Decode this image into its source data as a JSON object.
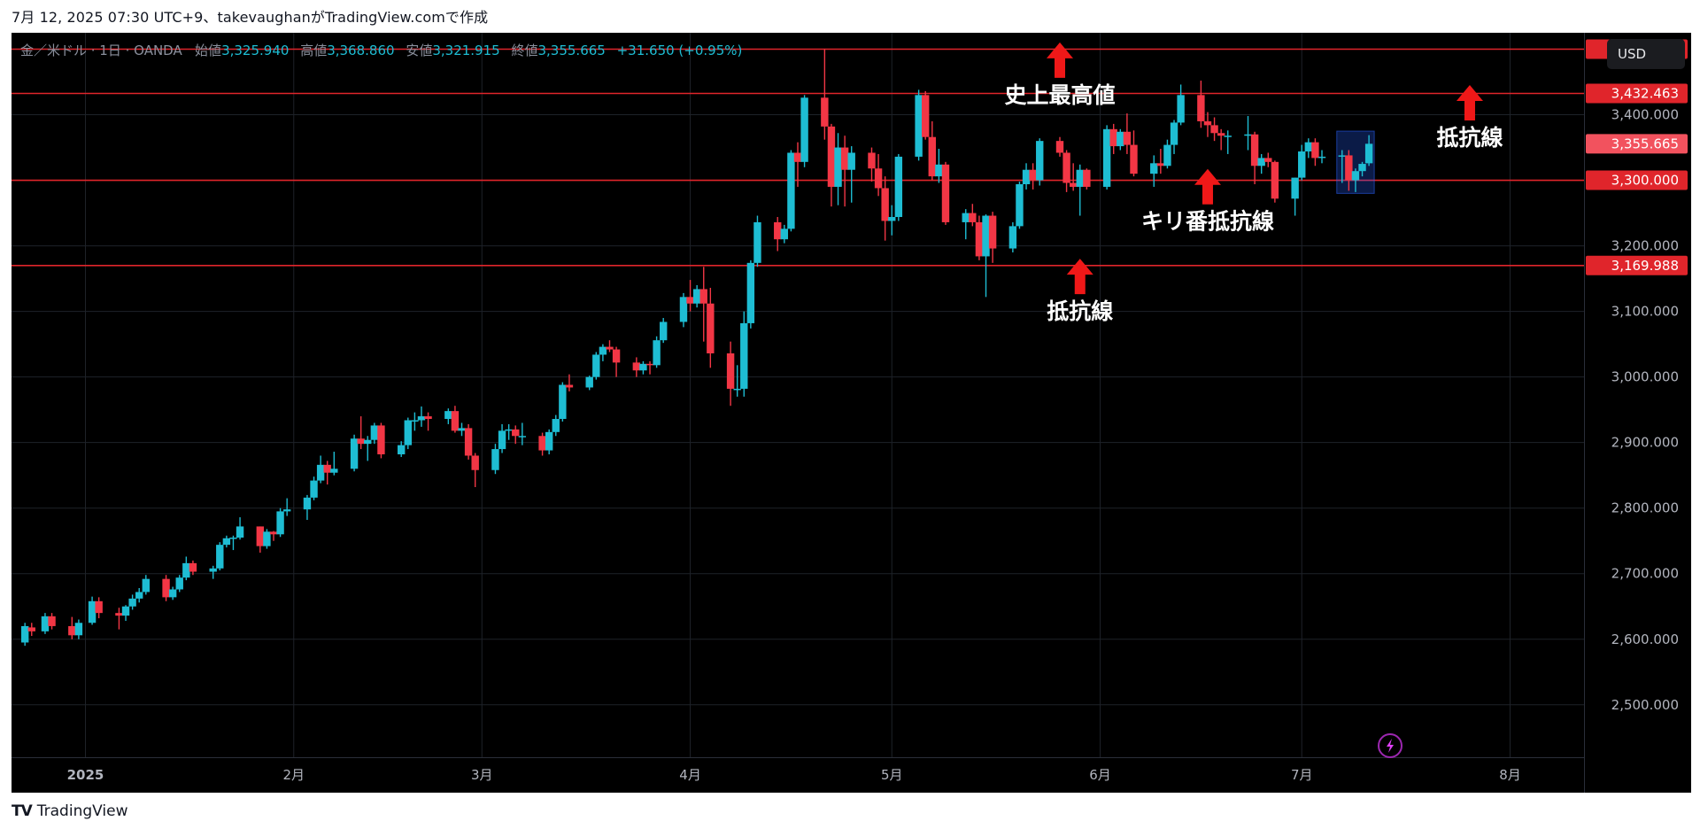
{
  "caption": "7月 12, 2025 07:30 UTC+9、takevaughanがTradingView.comで作成",
  "footer": {
    "logo": "TV",
    "brand": "TradingView"
  },
  "currency": "USD",
  "legend": {
    "symbol": "金／米ドル · 1日 · OANDA",
    "open_label": "始値",
    "open": "3,325.940",
    "high_label": "高値",
    "high": "3,368.860",
    "low_label": "安値",
    "low": "3,321.915",
    "close_label": "終値",
    "close": "3,355.665",
    "change": "+31.650 (+0.95%)"
  },
  "colors": {
    "up": "#1ebdd3",
    "down": "#f23645",
    "level_line": "#e0252b",
    "annotation_arrow": "#f01818",
    "price_tag_current": "#f2525e",
    "background": "#000000",
    "grid": "#1e2229"
  },
  "chart_data": {
    "type": "candlestick",
    "symbol": "XAU/USD",
    "interval": "1D",
    "yrange": [
      2420,
      3525
    ],
    "y_ticks": [
      2500,
      2600,
      2700,
      2800,
      2900,
      3000,
      3100,
      3200,
      3300,
      3400
    ],
    "y_tick_labels": [
      "2,500.000",
      "2,600.000",
      "2,700.000",
      "2,800.000",
      "2,900.000",
      "3,000.000",
      "3,100.000",
      "3,200.000",
      "3,300.000",
      "3,400.000"
    ],
    "x_axis_range": [
      "2024-12-21",
      "2025-08-12"
    ],
    "x_ticks": [
      {
        "date": "2025-01-01",
        "label": "2025",
        "bold": true
      },
      {
        "date": "2025-02-01",
        "label": "2月"
      },
      {
        "date": "2025-03-01",
        "label": "3月"
      },
      {
        "date": "2025-04-01",
        "label": "4月"
      },
      {
        "date": "2025-05-01",
        "label": "5月"
      },
      {
        "date": "2025-06-01",
        "label": "6月"
      },
      {
        "date": "2025-07-01",
        "label": "7月"
      },
      {
        "date": "2025-08-01",
        "label": "8月"
      }
    ],
    "horizontal_levels": [
      {
        "price": 3500.0,
        "label": "3,500.000"
      },
      {
        "price": 3432.463,
        "label": "3,432.463"
      },
      {
        "price": 3300.0,
        "label": "3,300.000"
      },
      {
        "price": 3169.988,
        "label": "3,169.988"
      }
    ],
    "current_price": {
      "price": 3355.665,
      "label": "3,355.665"
    },
    "annotations": [
      {
        "text": "史上最高値",
        "date": "2025-05-26",
        "price": 3405,
        "arrow": "up"
      },
      {
        "text": "キリ番抵抗線",
        "date": "2025-06-17",
        "price": 3212,
        "arrow": "up"
      },
      {
        "text": "抵抗線",
        "date": "2025-05-29",
        "price": 3075,
        "arrow": "up"
      },
      {
        "text": "抵抗線",
        "date": "2025-07-26",
        "price": 3340,
        "arrow": "up"
      }
    ],
    "highlight_box": {
      "from": "2025-07-07",
      "to": "2025-07-11",
      "low": 3280,
      "high": 3375
    },
    "candles": [
      {
        "d": "2024-12-23",
        "o": 2595,
        "h": 2625,
        "l": 2590,
        "c": 2620
      },
      {
        "d": "2024-12-24",
        "o": 2618,
        "h": 2625,
        "l": 2605,
        "c": 2612
      },
      {
        "d": "2024-12-26",
        "o": 2612,
        "h": 2640,
        "l": 2608,
        "c": 2635
      },
      {
        "d": "2024-12-27",
        "o": 2635,
        "h": 2640,
        "l": 2615,
        "c": 2620
      },
      {
        "d": "2024-12-30",
        "o": 2620,
        "h": 2634,
        "l": 2600,
        "c": 2606
      },
      {
        "d": "2024-12-31",
        "o": 2606,
        "h": 2630,
        "l": 2600,
        "c": 2625
      },
      {
        "d": "2025-01-02",
        "o": 2625,
        "h": 2665,
        "l": 2622,
        "c": 2658
      },
      {
        "d": "2025-01-03",
        "o": 2658,
        "h": 2664,
        "l": 2632,
        "c": 2640
      },
      {
        "d": "2025-01-06",
        "o": 2640,
        "h": 2648,
        "l": 2615,
        "c": 2636
      },
      {
        "d": "2025-01-07",
        "o": 2636,
        "h": 2652,
        "l": 2628,
        "c": 2650
      },
      {
        "d": "2025-01-08",
        "o": 2650,
        "h": 2668,
        "l": 2645,
        "c": 2662
      },
      {
        "d": "2025-01-09",
        "o": 2662,
        "h": 2678,
        "l": 2656,
        "c": 2672
      },
      {
        "d": "2025-01-10",
        "o": 2672,
        "h": 2698,
        "l": 2668,
        "c": 2692
      },
      {
        "d": "2025-01-13",
        "o": 2692,
        "h": 2698,
        "l": 2658,
        "c": 2664
      },
      {
        "d": "2025-01-14",
        "o": 2664,
        "h": 2680,
        "l": 2660,
        "c": 2676
      },
      {
        "d": "2025-01-15",
        "o": 2676,
        "h": 2698,
        "l": 2672,
        "c": 2694
      },
      {
        "d": "2025-01-16",
        "o": 2694,
        "h": 2726,
        "l": 2690,
        "c": 2716
      },
      {
        "d": "2025-01-17",
        "o": 2716,
        "h": 2720,
        "l": 2698,
        "c": 2703
      },
      {
        "d": "2025-01-20",
        "o": 2703,
        "h": 2712,
        "l": 2692,
        "c": 2708
      },
      {
        "d": "2025-01-21",
        "o": 2708,
        "h": 2748,
        "l": 2705,
        "c": 2744
      },
      {
        "d": "2025-01-22",
        "o": 2744,
        "h": 2758,
        "l": 2740,
        "c": 2754
      },
      {
        "d": "2025-01-23",
        "o": 2754,
        "h": 2758,
        "l": 2736,
        "c": 2755
      },
      {
        "d": "2025-01-24",
        "o": 2755,
        "h": 2786,
        "l": 2752,
        "c": 2772
      },
      {
        "d": "2025-01-27",
        "o": 2772,
        "h": 2772,
        "l": 2732,
        "c": 2742
      },
      {
        "d": "2025-01-28",
        "o": 2742,
        "h": 2768,
        "l": 2738,
        "c": 2764
      },
      {
        "d": "2025-01-29",
        "o": 2764,
        "h": 2765,
        "l": 2750,
        "c": 2760
      },
      {
        "d": "2025-01-30",
        "o": 2760,
        "h": 2800,
        "l": 2756,
        "c": 2795
      },
      {
        "d": "2025-01-31",
        "o": 2795,
        "h": 2815,
        "l": 2788,
        "c": 2798
      },
      {
        "d": "2025-02-03",
        "o": 2798,
        "h": 2820,
        "l": 2782,
        "c": 2816
      },
      {
        "d": "2025-02-04",
        "o": 2816,
        "h": 2848,
        "l": 2812,
        "c": 2842
      },
      {
        "d": "2025-02-05",
        "o": 2842,
        "h": 2880,
        "l": 2838,
        "c": 2866
      },
      {
        "d": "2025-02-06",
        "o": 2866,
        "h": 2872,
        "l": 2836,
        "c": 2854
      },
      {
        "d": "2025-02-07",
        "o": 2854,
        "h": 2886,
        "l": 2850,
        "c": 2860
      },
      {
        "d": "2025-02-10",
        "o": 2860,
        "h": 2912,
        "l": 2856,
        "c": 2906
      },
      {
        "d": "2025-02-11",
        "o": 2906,
        "h": 2940,
        "l": 2890,
        "c": 2898
      },
      {
        "d": "2025-02-12",
        "o": 2898,
        "h": 2910,
        "l": 2872,
        "c": 2904
      },
      {
        "d": "2025-02-13",
        "o": 2904,
        "h": 2930,
        "l": 2898,
        "c": 2926
      },
      {
        "d": "2025-02-14",
        "o": 2926,
        "h": 2930,
        "l": 2876,
        "c": 2882
      },
      {
        "d": "2025-02-17",
        "o": 2882,
        "h": 2902,
        "l": 2878,
        "c": 2896
      },
      {
        "d": "2025-02-18",
        "o": 2896,
        "h": 2938,
        "l": 2890,
        "c": 2934
      },
      {
        "d": "2025-02-19",
        "o": 2934,
        "h": 2946,
        "l": 2918,
        "c": 2934
      },
      {
        "d": "2025-02-20",
        "o": 2934,
        "h": 2955,
        "l": 2924,
        "c": 2940
      },
      {
        "d": "2025-02-21",
        "o": 2940,
        "h": 2946,
        "l": 2918,
        "c": 2936
      },
      {
        "d": "2025-02-24",
        "o": 2936,
        "h": 2952,
        "l": 2928,
        "c": 2948
      },
      {
        "d": "2025-02-25",
        "o": 2948,
        "h": 2956,
        "l": 2915,
        "c": 2918
      },
      {
        "d": "2025-02-26",
        "o": 2918,
        "h": 2930,
        "l": 2910,
        "c": 2922
      },
      {
        "d": "2025-02-27",
        "o": 2922,
        "h": 2928,
        "l": 2874,
        "c": 2880
      },
      {
        "d": "2025-02-28",
        "o": 2880,
        "h": 2884,
        "l": 2832,
        "c": 2858
      },
      {
        "d": "2025-03-03",
        "o": 2858,
        "h": 2898,
        "l": 2852,
        "c": 2890
      },
      {
        "d": "2025-03-04",
        "o": 2890,
        "h": 2928,
        "l": 2884,
        "c": 2918
      },
      {
        "d": "2025-03-05",
        "o": 2918,
        "h": 2928,
        "l": 2904,
        "c": 2920
      },
      {
        "d": "2025-03-06",
        "o": 2920,
        "h": 2926,
        "l": 2898,
        "c": 2910
      },
      {
        "d": "2025-03-07",
        "o": 2910,
        "h": 2930,
        "l": 2896,
        "c": 2910
      },
      {
        "d": "2025-03-10",
        "o": 2910,
        "h": 2915,
        "l": 2880,
        "c": 2888
      },
      {
        "d": "2025-03-11",
        "o": 2888,
        "h": 2920,
        "l": 2882,
        "c": 2916
      },
      {
        "d": "2025-03-12",
        "o": 2916,
        "h": 2942,
        "l": 2910,
        "c": 2936
      },
      {
        "d": "2025-03-13",
        "o": 2936,
        "h": 2992,
        "l": 2932,
        "c": 2988
      },
      {
        "d": "2025-03-14",
        "o": 2988,
        "h": 3004,
        "l": 2978,
        "c": 2984
      },
      {
        "d": "2025-03-17",
        "o": 2984,
        "h": 3002,
        "l": 2980,
        "c": 3000
      },
      {
        "d": "2025-03-18",
        "o": 3000,
        "h": 3038,
        "l": 2996,
        "c": 3034
      },
      {
        "d": "2025-03-19",
        "o": 3034,
        "h": 3050,
        "l": 3024,
        "c": 3046
      },
      {
        "d": "2025-03-20",
        "o": 3046,
        "h": 3056,
        "l": 3038,
        "c": 3042
      },
      {
        "d": "2025-03-21",
        "o": 3042,
        "h": 3046,
        "l": 3000,
        "c": 3022
      },
      {
        "d": "2025-03-24",
        "o": 3022,
        "h": 3030,
        "l": 3000,
        "c": 3010
      },
      {
        "d": "2025-03-25",
        "o": 3010,
        "h": 3024,
        "l": 3004,
        "c": 3020
      },
      {
        "d": "2025-03-26",
        "o": 3020,
        "h": 3024,
        "l": 3004,
        "c": 3018
      },
      {
        "d": "2025-03-27",
        "o": 3018,
        "h": 3062,
        "l": 3014,
        "c": 3056
      },
      {
        "d": "2025-03-28",
        "o": 3056,
        "h": 3090,
        "l": 3052,
        "c": 3084
      },
      {
        "d": "2025-03-31",
        "o": 3084,
        "h": 3128,
        "l": 3076,
        "c": 3122
      },
      {
        "d": "2025-04-01",
        "o": 3122,
        "h": 3148,
        "l": 3100,
        "c": 3112
      },
      {
        "d": "2025-04-02",
        "o": 3112,
        "h": 3140,
        "l": 3106,
        "c": 3134
      },
      {
        "d": "2025-04-03",
        "o": 3134,
        "h": 3168,
        "l": 3054,
        "c": 3112
      },
      {
        "d": "2025-04-04",
        "o": 3112,
        "h": 3136,
        "l": 3014,
        "c": 3036
      },
      {
        "d": "2025-04-07",
        "o": 3036,
        "h": 3054,
        "l": 2956,
        "c": 2982
      },
      {
        "d": "2025-04-08",
        "o": 2982,
        "h": 3018,
        "l": 2970,
        "c": 2982
      },
      {
        "d": "2025-04-09",
        "o": 2982,
        "h": 3100,
        "l": 2970,
        "c": 3082
      },
      {
        "d": "2025-04-10",
        "o": 3082,
        "h": 3178,
        "l": 3074,
        "c": 3174
      },
      {
        "d": "2025-04-11",
        "o": 3174,
        "h": 3246,
        "l": 3168,
        "c": 3236
      },
      {
        "d": "2025-04-14",
        "o": 3236,
        "h": 3244,
        "l": 3192,
        "c": 3210
      },
      {
        "d": "2025-04-15",
        "o": 3210,
        "h": 3232,
        "l": 3204,
        "c": 3226
      },
      {
        "d": "2025-04-16",
        "o": 3226,
        "h": 3346,
        "l": 3222,
        "c": 3342
      },
      {
        "d": "2025-04-17",
        "o": 3342,
        "h": 3358,
        "l": 3290,
        "c": 3328
      },
      {
        "d": "2025-04-18",
        "o": 3328,
        "h": 3430,
        "l": 3320,
        "c": 3426
      },
      {
        "d": "2025-04-21",
        "o": 3426,
        "h": 3500,
        "l": 3362,
        "c": 3382
      },
      {
        "d": "2025-04-22",
        "o": 3382,
        "h": 3386,
        "l": 3260,
        "c": 3290
      },
      {
        "d": "2025-04-23",
        "o": 3290,
        "h": 3372,
        "l": 3262,
        "c": 3350
      },
      {
        "d": "2025-04-24",
        "o": 3350,
        "h": 3368,
        "l": 3260,
        "c": 3316
      },
      {
        "d": "2025-04-25",
        "o": 3316,
        "h": 3352,
        "l": 3266,
        "c": 3342
      },
      {
        "d": "2025-04-28",
        "o": 3342,
        "h": 3350,
        "l": 3298,
        "c": 3318
      },
      {
        "d": "2025-04-29",
        "o": 3318,
        "h": 3340,
        "l": 3276,
        "c": 3288
      },
      {
        "d": "2025-04-30",
        "o": 3288,
        "h": 3306,
        "l": 3208,
        "c": 3238
      },
      {
        "d": "2025-05-01",
        "o": 3238,
        "h": 3262,
        "l": 3216,
        "c": 3244
      },
      {
        "d": "2025-05-02",
        "o": 3244,
        "h": 3340,
        "l": 3238,
        "c": 3336
      },
      {
        "d": "2025-05-05",
        "o": 3336,
        "h": 3438,
        "l": 3330,
        "c": 3430
      },
      {
        "d": "2025-05-06",
        "o": 3430,
        "h": 3436,
        "l": 3362,
        "c": 3366
      },
      {
        "d": "2025-05-07",
        "o": 3366,
        "h": 3390,
        "l": 3300,
        "c": 3306
      },
      {
        "d": "2025-05-08",
        "o": 3306,
        "h": 3348,
        "l": 3296,
        "c": 3324
      },
      {
        "d": "2025-05-09",
        "o": 3324,
        "h": 3328,
        "l": 3232,
        "c": 3236
      },
      {
        "d": "2025-05-12",
        "o": 3236,
        "h": 3256,
        "l": 3210,
        "c": 3250
      },
      {
        "d": "2025-05-13",
        "o": 3250,
        "h": 3264,
        "l": 3230,
        "c": 3236
      },
      {
        "d": "2025-05-14",
        "o": 3236,
        "h": 3246,
        "l": 3178,
        "c": 3184
      },
      {
        "d": "2025-05-15",
        "o": 3184,
        "h": 3248,
        "l": 3122,
        "c": 3246
      },
      {
        "d": "2025-05-16",
        "o": 3246,
        "h": 3252,
        "l": 3174,
        "c": 3196
      },
      {
        "d": "2025-05-19",
        "o": 3196,
        "h": 3236,
        "l": 3190,
        "c": 3230
      },
      {
        "d": "2025-05-20",
        "o": 3230,
        "h": 3298,
        "l": 3226,
        "c": 3294
      },
      {
        "d": "2025-05-21",
        "o": 3294,
        "h": 3326,
        "l": 3286,
        "c": 3316
      },
      {
        "d": "2025-05-22",
        "o": 3316,
        "h": 3326,
        "l": 3286,
        "c": 3300
      },
      {
        "d": "2025-05-23",
        "o": 3300,
        "h": 3364,
        "l": 3292,
        "c": 3360
      },
      {
        "d": "2025-05-26",
        "o": 3360,
        "h": 3366,
        "l": 3336,
        "c": 3342
      },
      {
        "d": "2025-05-27",
        "o": 3342,
        "h": 3346,
        "l": 3282,
        "c": 3296
      },
      {
        "d": "2025-05-28",
        "o": 3296,
        "h": 3326,
        "l": 3284,
        "c": 3290
      },
      {
        "d": "2025-05-29",
        "o": 3290,
        "h": 3324,
        "l": 3246,
        "c": 3316
      },
      {
        "d": "2025-05-30",
        "o": 3316,
        "h": 3318,
        "l": 3286,
        "c": 3290
      },
      {
        "d": "2025-06-02",
        "o": 3290,
        "h": 3384,
        "l": 3286,
        "c": 3378
      },
      {
        "d": "2025-06-03",
        "o": 3378,
        "h": 3386,
        "l": 3340,
        "c": 3352
      },
      {
        "d": "2025-06-04",
        "o": 3352,
        "h": 3378,
        "l": 3346,
        "c": 3374
      },
      {
        "d": "2025-06-05",
        "o": 3374,
        "h": 3402,
        "l": 3340,
        "c": 3354
      },
      {
        "d": "2025-06-06",
        "o": 3354,
        "h": 3376,
        "l": 3306,
        "c": 3310
      },
      {
        "d": "2025-06-09",
        "o": 3310,
        "h": 3338,
        "l": 3290,
        "c": 3326
      },
      {
        "d": "2025-06-10",
        "o": 3326,
        "h": 3348,
        "l": 3310,
        "c": 3322
      },
      {
        "d": "2025-06-11",
        "o": 3322,
        "h": 3362,
        "l": 3318,
        "c": 3354
      },
      {
        "d": "2025-06-12",
        "o": 3354,
        "h": 3392,
        "l": 3340,
        "c": 3388
      },
      {
        "d": "2025-06-13",
        "o": 3388,
        "h": 3446,
        "l": 3384,
        "c": 3430
      },
      {
        "d": "2025-06-16",
        "o": 3430,
        "h": 3452,
        "l": 3380,
        "c": 3390
      },
      {
        "d": "2025-06-17",
        "o": 3390,
        "h": 3404,
        "l": 3366,
        "c": 3384
      },
      {
        "d": "2025-06-18",
        "o": 3384,
        "h": 3396,
        "l": 3360,
        "c": 3372
      },
      {
        "d": "2025-06-19",
        "o": 3372,
        "h": 3378,
        "l": 3346,
        "c": 3368
      },
      {
        "d": "2025-06-20",
        "o": 3368,
        "h": 3376,
        "l": 3340,
        "c": 3368
      },
      {
        "d": "2025-06-23",
        "o": 3368,
        "h": 3398,
        "l": 3346,
        "c": 3370
      },
      {
        "d": "2025-06-24",
        "o": 3370,
        "h": 3374,
        "l": 3294,
        "c": 3322
      },
      {
        "d": "2025-06-25",
        "o": 3322,
        "h": 3340,
        "l": 3310,
        "c": 3334
      },
      {
        "d": "2025-06-26",
        "o": 3334,
        "h": 3342,
        "l": 3320,
        "c": 3328
      },
      {
        "d": "2025-06-27",
        "o": 3328,
        "h": 3330,
        "l": 3266,
        "c": 3272
      },
      {
        "d": "2025-06-30",
        "o": 3272,
        "h": 3304,
        "l": 3246,
        "c": 3304
      },
      {
        "d": "2025-07-01",
        "o": 3304,
        "h": 3354,
        "l": 3300,
        "c": 3344
      },
      {
        "d": "2025-07-02",
        "o": 3344,
        "h": 3364,
        "l": 3334,
        "c": 3358
      },
      {
        "d": "2025-07-03",
        "o": 3358,
        "h": 3364,
        "l": 3322,
        "c": 3334
      },
      {
        "d": "2025-07-04",
        "o": 3334,
        "h": 3346,
        "l": 3326,
        "c": 3336
      },
      {
        "d": "2025-07-07",
        "o": 3336,
        "h": 3346,
        "l": 3296,
        "c": 3338
      },
      {
        "d": "2025-07-08",
        "o": 3338,
        "h": 3346,
        "l": 3284,
        "c": 3300
      },
      {
        "d": "2025-07-09",
        "o": 3300,
        "h": 3318,
        "l": 3282,
        "c": 3314
      },
      {
        "d": "2025-07-10",
        "o": 3314,
        "h": 3328,
        "l": 3306,
        "c": 3325
      },
      {
        "d": "2025-07-11",
        "o": 3325.94,
        "h": 3368.86,
        "l": 3321.915,
        "c": 3355.665
      }
    ]
  }
}
